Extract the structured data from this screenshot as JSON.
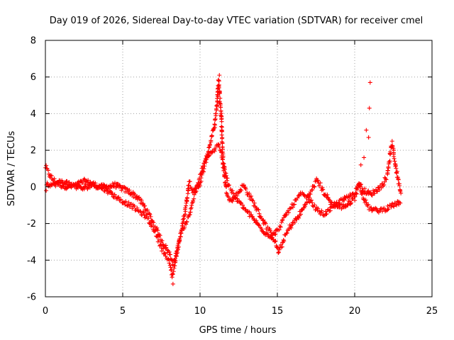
{
  "chart_data": {
    "type": "scatter",
    "title": "Day 019 of 2026, Sidereal Day-to-day VTEC variation (SDTVAR) for receiver cmel",
    "xlabel": "GPS time / hours",
    "ylabel": "SDTVAR / TECUs",
    "xlim": [
      0,
      25
    ],
    "ylim": [
      -6,
      8
    ],
    "x_ticks": [
      0,
      5,
      10,
      15,
      20,
      25
    ],
    "x_tick_labels": [
      "0",
      "5",
      "10",
      "15",
      "20",
      "25"
    ],
    "y_ticks": [
      -6,
      -4,
      -2,
      0,
      2,
      4,
      6,
      8
    ],
    "y_tick_labels": [
      "-6",
      "-4",
      "-2",
      "0",
      "2",
      "4",
      "6",
      "8"
    ],
    "grid": true,
    "marker": "plus",
    "marker_color": "#ff0000",
    "series": [
      {
        "name": "SDTVAR",
        "trace_a": [
          [
            0.0,
            1.1
          ],
          [
            0.3,
            0.6
          ],
          [
            0.6,
            0.3
          ],
          [
            1.0,
            0.1
          ],
          [
            1.5,
            0.0
          ],
          [
            2.0,
            0.1
          ],
          [
            2.5,
            0.3
          ],
          [
            3.0,
            0.2
          ],
          [
            3.5,
            0.0
          ],
          [
            4.0,
            0.0
          ],
          [
            4.5,
            0.1
          ],
          [
            5.0,
            -0.1
          ],
          [
            5.5,
            -0.3
          ],
          [
            6.0,
            -0.6
          ],
          [
            6.5,
            -1.2
          ],
          [
            7.0,
            -2.0
          ],
          [
            7.5,
            -2.9
          ],
          [
            8.0,
            -3.6
          ],
          [
            8.3,
            -4.2
          ],
          [
            8.6,
            -3.2
          ],
          [
            9.0,
            -1.5
          ],
          [
            9.3,
            0.3
          ],
          [
            9.6,
            -0.3
          ],
          [
            10.0,
            0.2
          ],
          [
            10.3,
            1.2
          ],
          [
            10.6,
            2.2
          ],
          [
            10.9,
            3.2
          ],
          [
            11.1,
            4.5
          ],
          [
            11.2,
            5.8
          ],
          [
            11.3,
            4.6
          ],
          [
            11.4,
            3.4
          ],
          [
            11.5,
            1.2
          ],
          [
            11.7,
            -0.2
          ],
          [
            12.0,
            -0.8
          ],
          [
            12.4,
            -0.4
          ],
          [
            12.8,
            0.1
          ],
          [
            13.2,
            -0.5
          ],
          [
            13.6,
            -1.1
          ],
          [
            14.0,
            -1.7
          ],
          [
            14.4,
            -2.3
          ],
          [
            14.8,
            -2.9
          ],
          [
            15.1,
            -3.6
          ],
          [
            15.4,
            -2.9
          ],
          [
            15.8,
            -2.2
          ],
          [
            16.3,
            -1.7
          ],
          [
            16.8,
            -1.0
          ],
          [
            17.2,
            -0.2
          ],
          [
            17.6,
            0.4
          ],
          [
            18.0,
            -0.3
          ],
          [
            18.5,
            -0.9
          ],
          [
            19.0,
            -1.1
          ],
          [
            19.5,
            -1.0
          ],
          [
            20.0,
            -0.6
          ],
          [
            20.3,
            0.2
          ],
          [
            20.6,
            -0.2
          ],
          [
            21.0,
            -0.4
          ],
          [
            21.4,
            -0.2
          ],
          [
            21.8,
            0.1
          ],
          [
            22.1,
            0.6
          ],
          [
            22.4,
            2.4
          ],
          [
            22.7,
            0.9
          ],
          [
            23.0,
            -0.4
          ]
        ],
        "trace_b": [
          [
            0.0,
            0.2
          ],
          [
            0.5,
            0.1
          ],
          [
            1.0,
            0.3
          ],
          [
            1.5,
            0.2
          ],
          [
            2.0,
            0.0
          ],
          [
            2.5,
            -0.1
          ],
          [
            3.0,
            0.1
          ],
          [
            3.5,
            0.0
          ],
          [
            4.0,
            -0.2
          ],
          [
            4.5,
            -0.5
          ],
          [
            5.0,
            -0.8
          ],
          [
            5.5,
            -1.0
          ],
          [
            6.0,
            -1.3
          ],
          [
            6.5,
            -1.6
          ],
          [
            7.0,
            -2.3
          ],
          [
            7.5,
            -3.3
          ],
          [
            8.0,
            -4.1
          ],
          [
            8.2,
            -4.9
          ],
          [
            8.5,
            -3.6
          ],
          [
            8.8,
            -2.4
          ],
          [
            9.0,
            -2.1
          ],
          [
            9.3,
            -1.6
          ],
          [
            9.6,
            -0.6
          ],
          [
            10.0,
            0.6
          ],
          [
            10.4,
            1.6
          ],
          [
            10.8,
            1.9
          ],
          [
            11.2,
            2.3
          ],
          [
            11.5,
            1.4
          ],
          [
            11.8,
            0.2
          ],
          [
            12.2,
            -0.5
          ],
          [
            12.6,
            -0.9
          ],
          [
            13.0,
            -1.3
          ],
          [
            13.4,
            -1.7
          ],
          [
            13.8,
            -2.1
          ],
          [
            14.2,
            -2.5
          ],
          [
            14.6,
            -2.7
          ],
          [
            15.0,
            -2.4
          ],
          [
            15.5,
            -1.6
          ],
          [
            16.0,
            -1.0
          ],
          [
            16.5,
            -0.4
          ],
          [
            17.0,
            -0.6
          ],
          [
            17.5,
            -1.2
          ],
          [
            18.0,
            -1.5
          ],
          [
            18.5,
            -1.2
          ],
          [
            19.0,
            -0.8
          ],
          [
            19.5,
            -0.6
          ],
          [
            20.0,
            -0.3
          ],
          [
            20.3,
            0.2
          ],
          [
            20.6,
            -0.7
          ],
          [
            21.0,
            -1.2
          ],
          [
            21.5,
            -1.3
          ],
          [
            22.0,
            -1.2
          ],
          [
            22.5,
            -1.0
          ],
          [
            23.0,
            -0.8
          ]
        ],
        "outliers": [
          [
            20.4,
            1.2
          ],
          [
            20.6,
            1.6
          ],
          [
            20.75,
            3.1
          ],
          [
            20.9,
            2.7
          ],
          [
            20.95,
            4.3
          ],
          [
            21.0,
            5.7
          ],
          [
            0.05,
            -0.2
          ],
          [
            8.25,
            -5.3
          ],
          [
            11.25,
            6.1
          ]
        ]
      }
    ]
  }
}
